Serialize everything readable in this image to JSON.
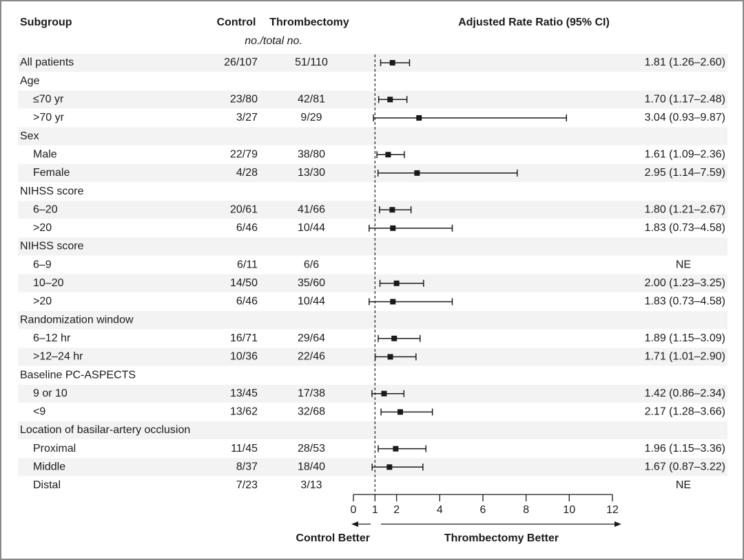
{
  "chart_data": {
    "type": "forest",
    "headers": {
      "subgroup": "Subgroup",
      "control": "Control",
      "thrombectomy": "Thrombectomy",
      "units": "no./total no.",
      "effect": "Adjusted Rate Ratio (95% CI)"
    },
    "overall": {
      "label": "All patients",
      "control": "26/107",
      "thrombectomy": "51/110",
      "value": 1.81,
      "lower": 1.26,
      "upper": 2.6,
      "value_label": "1.81 (1.26–2.60)"
    },
    "subgroups": [
      {
        "name": "Age",
        "rows": [
          {
            "label": "≤70 yr",
            "control": "23/80",
            "thrombectomy": "42/81",
            "value": 1.7,
            "lower": 1.17,
            "upper": 2.48,
            "value_label": "1.70 (1.17–2.48)"
          },
          {
            "label": ">70 yr",
            "control": "3/27",
            "thrombectomy": "9/29",
            "value": 3.04,
            "lower": 0.93,
            "upper": 9.87,
            "value_label": "3.04 (0.93–9.87)"
          }
        ]
      },
      {
        "name": "Sex",
        "rows": [
          {
            "label": "Male",
            "control": "22/79",
            "thrombectomy": "38/80",
            "value": 1.61,
            "lower": 1.09,
            "upper": 2.36,
            "value_label": "1.61 (1.09–2.36)"
          },
          {
            "label": "Female",
            "control": "4/28",
            "thrombectomy": "13/30",
            "value": 2.95,
            "lower": 1.14,
            "upper": 7.59,
            "value_label": "2.95 (1.14–7.59)"
          }
        ]
      },
      {
        "name": "NIHSS score",
        "rows": [
          {
            "label": "6–20",
            "control": "20/61",
            "thrombectomy": "41/66",
            "value": 1.8,
            "lower": 1.21,
            "upper": 2.67,
            "value_label": "1.80 (1.21–2.67)"
          },
          {
            "label": ">20",
            "control": "6/46",
            "thrombectomy": "10/44",
            "value": 1.83,
            "lower": 0.73,
            "upper": 4.58,
            "value_label": "1.83 (0.73–4.58)"
          }
        ]
      },
      {
        "name": "NIHSS score",
        "rows": [
          {
            "label": "6–9",
            "control": "6/11",
            "thrombectomy": "6/6",
            "value_label": "NE"
          },
          {
            "label": "10–20",
            "control": "14/50",
            "thrombectomy": "35/60",
            "value": 2.0,
            "lower": 1.23,
            "upper": 3.25,
            "value_label": "2.00 (1.23–3.25)"
          },
          {
            "label": ">20",
            "control": "6/46",
            "thrombectomy": "10/44",
            "value": 1.83,
            "lower": 0.73,
            "upper": 4.58,
            "value_label": "1.83 (0.73–4.58)"
          }
        ]
      },
      {
        "name": "Randomization window",
        "rows": [
          {
            "label": "6–12 hr",
            "control": "16/71",
            "thrombectomy": "29/64",
            "value": 1.89,
            "lower": 1.15,
            "upper": 3.09,
            "value_label": "1.89 (1.15–3.09)"
          },
          {
            "label": ">12–24 hr",
            "control": "10/36",
            "thrombectomy": "22/46",
            "value": 1.71,
            "lower": 1.01,
            "upper": 2.9,
            "value_label": "1.71 (1.01–2.90)"
          }
        ]
      },
      {
        "name": "Baseline PC-ASPECTS",
        "rows": [
          {
            "label": "9 or 10",
            "control": "13/45",
            "thrombectomy": "17/38",
            "value": 1.42,
            "lower": 0.86,
            "upper": 2.34,
            "value_label": "1.42 (0.86–2.34)"
          },
          {
            "label": "<9",
            "control": "13/62",
            "thrombectomy": "32/68",
            "value": 2.17,
            "lower": 1.28,
            "upper": 3.66,
            "value_label": "2.17 (1.28–3.66)"
          }
        ]
      },
      {
        "name": "Location of basilar-artery occlusion",
        "rows": [
          {
            "label": "Proximal",
            "control": "11/45",
            "thrombectomy": "28/53",
            "value": 1.96,
            "lower": 1.15,
            "upper": 3.36,
            "value_label": "1.96 (1.15–3.36)"
          },
          {
            "label": "Middle",
            "control": "8/37",
            "thrombectomy": "18/40",
            "value": 1.67,
            "lower": 0.87,
            "upper": 3.22,
            "value_label": "1.67 (0.87–3.22)"
          },
          {
            "label": "Distal",
            "control": "7/23",
            "thrombectomy": "3/13",
            "value_label": "NE"
          }
        ]
      }
    ],
    "xlim": [
      0,
      12
    ],
    "xticks": [
      0,
      1,
      2,
      4,
      6,
      8,
      10,
      12
    ],
    "reference_line": 1,
    "left_label": "Control Better",
    "right_label": "Thrombectomy Better"
  }
}
